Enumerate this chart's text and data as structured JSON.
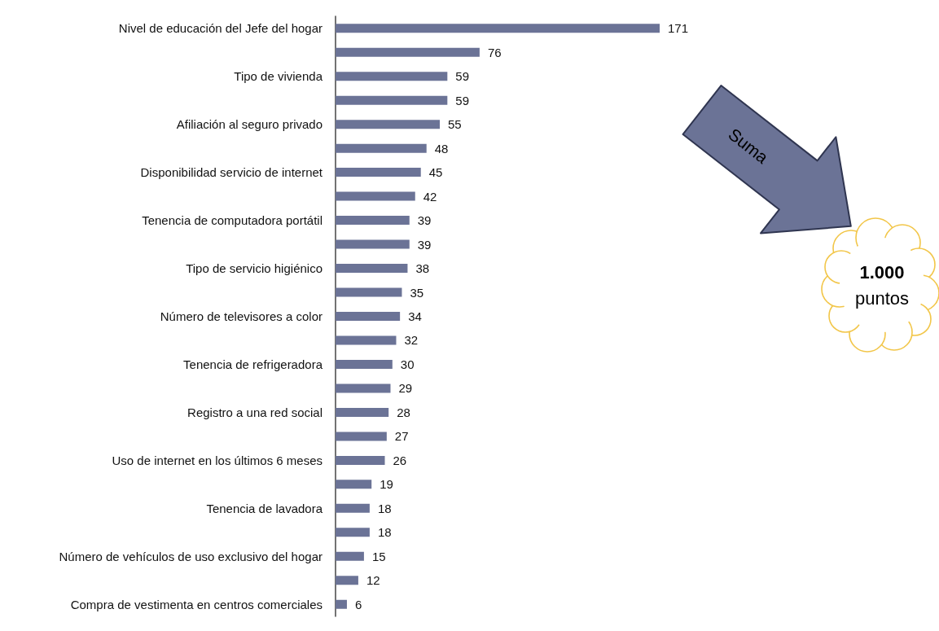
{
  "chart_data": {
    "type": "bar",
    "orientation": "horizontal",
    "data_labels": true,
    "tick_labels": "y",
    "color": "#6b7396",
    "categories": [
      "Nivel de educación del Jefe del hogar",
      null,
      "Tipo de vivienda",
      null,
      "Afiliación al seguro privado",
      null,
      "Disponibilidad servicio de internet",
      null,
      "Tenencia de computadora portátil",
      null,
      "Tipo de servicio higiénico",
      null,
      "Número de televisores a color",
      null,
      "Tenencia de refrigeradora",
      null,
      "Registro a una red social",
      null,
      "Uso de internet en los últimos 6 meses",
      null,
      "Tenencia de lavadora",
      null,
      "Número de vehículos de uso exclusivo del hogar",
      null,
      "Compra de vestimenta en centros comerciales"
    ],
    "values": [
      171,
      76,
      59,
      59,
      55,
      48,
      45,
      42,
      39,
      39,
      38,
      35,
      34,
      32,
      30,
      29,
      28,
      27,
      26,
      19,
      18,
      18,
      15,
      12,
      6
    ],
    "annotations": [
      "Suma",
      "1.000 puntos"
    ]
  }
}
